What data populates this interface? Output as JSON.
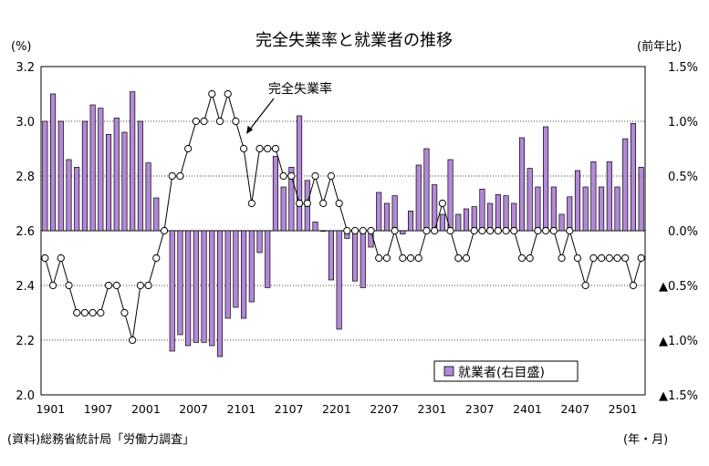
{
  "chart_data": {
    "type": "bar+line",
    "title": "完全失業率と就業者の推移",
    "left_axis_unit": "(%)",
    "right_axis_unit": "(前年比)",
    "x_unit": "(年・月)",
    "source": "(資料)総務省統計局「労働力調査」",
    "left_axis": {
      "min": 2.0,
      "max": 3.2,
      "ticks": [
        "3.2",
        "3.0",
        "2.8",
        "2.6",
        "2.4",
        "2.2",
        "2.0"
      ]
    },
    "right_axis": {
      "min": -1.5,
      "max": 1.5,
      "ticks": [
        "1.5%",
        "1.0%",
        "0.5%",
        "0.0%",
        "▲0.5%",
        "▲1.0%",
        "▲1.5%"
      ]
    },
    "x_tick_labels": [
      "1901",
      "1907",
      "2001",
      "2007",
      "2101",
      "2107",
      "2201",
      "2207",
      "2301",
      "2307",
      "2401",
      "2407",
      "2501"
    ],
    "periods": [
      "2019-01",
      "2019-02",
      "2019-03",
      "2019-04",
      "2019-05",
      "2019-06",
      "2019-07",
      "2019-08",
      "2019-09",
      "2019-10",
      "2019-11",
      "2019-12",
      "2020-01",
      "2020-02",
      "2020-03",
      "2020-04",
      "2020-05",
      "2020-06",
      "2020-07",
      "2020-08",
      "2020-09",
      "2020-10",
      "2020-11",
      "2020-12",
      "2021-01",
      "2021-02",
      "2021-03",
      "2021-04",
      "2021-05",
      "2021-06",
      "2021-07",
      "2021-08",
      "2021-09",
      "2021-10",
      "2021-11",
      "2021-12",
      "2022-01",
      "2022-02",
      "2022-03",
      "2022-04",
      "2022-05",
      "2022-06",
      "2022-07",
      "2022-08",
      "2022-09",
      "2022-10",
      "2022-11",
      "2022-12",
      "2023-01",
      "2023-02",
      "2023-03",
      "2023-04",
      "2023-05",
      "2023-06",
      "2023-07",
      "2023-08",
      "2023-09",
      "2023-10",
      "2023-11",
      "2023-12",
      "2024-01",
      "2024-02",
      "2024-03",
      "2024-04",
      "2024-05",
      "2024-06",
      "2024-07",
      "2024-08",
      "2024-09",
      "2024-10",
      "2024-11",
      "2024-12",
      "2025-01",
      "2025-02",
      "2025-03",
      "2025-04"
    ],
    "series": [
      {
        "name": "就業者(右目盛)",
        "type": "bar",
        "axis": "right",
        "color": "#b388d8",
        "values": [
          1.0,
          1.25,
          1.0,
          0.65,
          0.58,
          1.0,
          1.15,
          1.12,
          0.88,
          1.03,
          0.9,
          1.27,
          1.0,
          0.62,
          0.3,
          -0.02,
          -1.1,
          -0.95,
          -1.05,
          -1.02,
          -1.02,
          -1.05,
          -1.15,
          -0.8,
          -0.7,
          -0.8,
          -0.65,
          -0.2,
          -0.52,
          0.68,
          0.4,
          0.58,
          1.05,
          0.46,
          0.08,
          0.0,
          -0.45,
          -0.9,
          -0.07,
          -0.46,
          -0.52,
          -0.15,
          0.35,
          0.25,
          0.32,
          -0.03,
          0.18,
          0.6,
          0.75,
          0.42,
          0.15,
          0.65,
          0.15,
          0.2,
          0.22,
          0.38,
          0.25,
          0.33,
          0.32,
          0.25,
          0.85,
          0.57,
          0.4,
          0.95,
          0.4,
          0.15,
          0.31,
          0.55,
          0.4,
          0.63,
          0.4,
          0.63,
          0.4,
          0.84,
          0.98,
          0.58
        ]
      },
      {
        "name": "完全失業率",
        "type": "line",
        "axis": "left",
        "values": [
          2.5,
          2.4,
          2.5,
          2.4,
          2.3,
          2.3,
          2.3,
          2.3,
          2.4,
          2.4,
          2.3,
          2.2,
          2.4,
          2.4,
          2.5,
          2.6,
          2.8,
          2.8,
          2.9,
          3.0,
          3.0,
          3.1,
          3.0,
          3.1,
          3.0,
          2.9,
          2.7,
          2.9,
          2.9,
          2.9,
          2.8,
          2.8,
          2.7,
          2.7,
          2.8,
          2.7,
          2.8,
          2.7,
          2.6,
          2.6,
          2.6,
          2.6,
          2.5,
          2.5,
          2.6,
          2.5,
          2.5,
          2.5,
          2.6,
          2.6,
          2.7,
          2.6,
          2.5,
          2.5,
          2.6,
          2.6,
          2.6,
          2.6,
          2.6,
          2.6,
          2.5,
          2.5,
          2.6,
          2.6,
          2.6,
          2.5,
          2.6,
          2.5,
          2.4,
          2.5,
          2.5,
          2.5,
          2.5,
          2.5,
          2.4,
          2.5
        ]
      }
    ],
    "annotation": "完全失業率",
    "legend": {
      "label": "就業者(右目盛)",
      "position": "bottom-right"
    },
    "grid": "horizontal dotted"
  }
}
